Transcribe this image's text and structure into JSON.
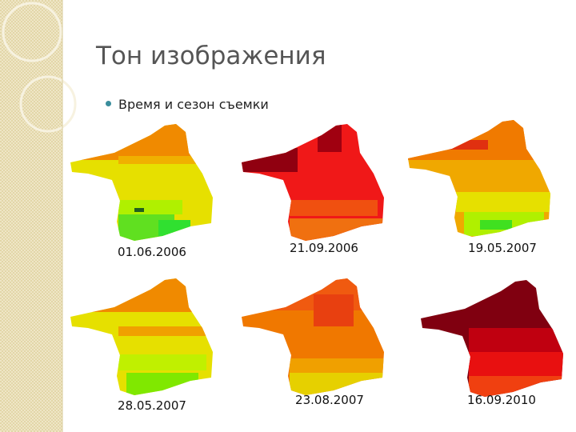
{
  "title": "Тон изображения",
  "bullets": [
    "Время и сезон съемки"
  ],
  "images": [
    {
      "caption": "01.06.2006"
    },
    {
      "caption": "21.09.2006"
    },
    {
      "caption": "19.05.2007"
    },
    {
      "caption": "28.05.2007"
    },
    {
      "caption": "23.08.2007"
    },
    {
      "caption": "16.09.2010"
    }
  ]
}
